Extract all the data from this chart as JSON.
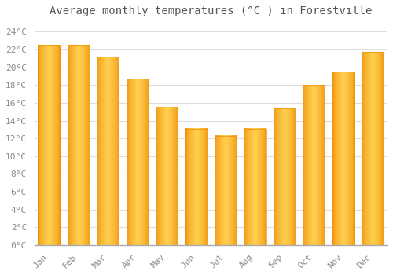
{
  "title": "Average monthly temperatures (°C ) in Forestville",
  "months": [
    "Jan",
    "Feb",
    "Mar",
    "Apr",
    "May",
    "Jun",
    "Jul",
    "Aug",
    "Sep",
    "Oct",
    "Nov",
    "Dec"
  ],
  "values": [
    22.5,
    22.5,
    21.2,
    18.7,
    15.5,
    13.1,
    12.3,
    13.1,
    15.4,
    18.0,
    19.5,
    21.7
  ],
  "bar_color_center": "#FFD050",
  "bar_color_edge": "#F0900A",
  "ylim": [
    0,
    25
  ],
  "yticks": [
    0,
    2,
    4,
    6,
    8,
    10,
    12,
    14,
    16,
    18,
    20,
    22,
    24
  ],
  "background_color": "#FFFFFF",
  "plot_bg_color": "#FFFFFF",
  "grid_color": "#DDDDDD",
  "title_fontsize": 10,
  "tick_fontsize": 8,
  "tick_color": "#888888",
  "title_color": "#555555",
  "bar_width": 0.75,
  "bar_gap": 0.12
}
